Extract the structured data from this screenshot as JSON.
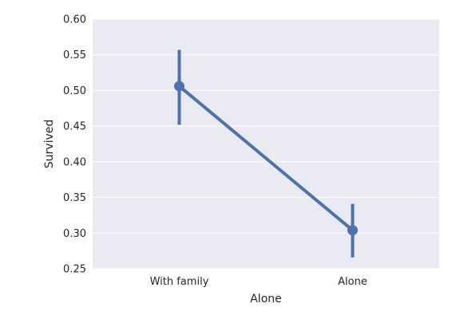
{
  "chart_data": {
    "type": "point",
    "categories": [
      "With family",
      "Alone"
    ],
    "series": [
      {
        "values": [
          0.506,
          0.304
        ],
        "ci_low": [
          0.452,
          0.266
        ],
        "ci_high": [
          0.557,
          0.341
        ]
      }
    ],
    "xlabel": "Alone",
    "ylabel": "Survived",
    "ylim": [
      0.25,
      0.6
    ],
    "yticks": [
      0.25,
      0.3,
      0.35,
      0.4,
      0.45,
      0.5,
      0.55,
      0.6
    ],
    "ytick_labels": [
      "0.25",
      "0.30",
      "0.35",
      "0.40",
      "0.45",
      "0.50",
      "0.55",
      "0.60"
    ],
    "grid": true,
    "colors": {
      "background": "#EAEAF2",
      "series": "#4C72B0",
      "grid": "#FFFFFF",
      "text": "#262626"
    }
  }
}
